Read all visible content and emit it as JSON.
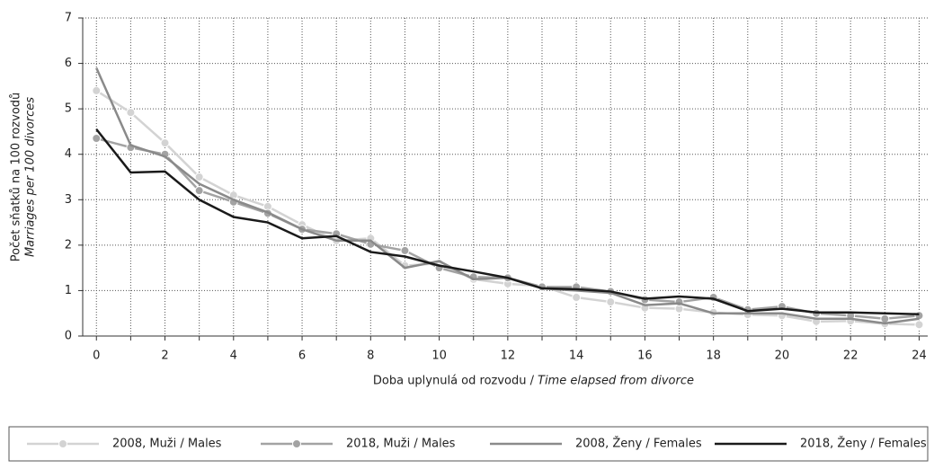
{
  "chart_data": {
    "type": "line",
    "y_label": "Počet sňatků na 100 rozvodů",
    "y_label_en": "Marriages per 100 divorces",
    "x_label": "Doba uplynulá od rozvodu /",
    "x_label_en": "Time elapsed from divorce",
    "x": [
      0,
      1,
      2,
      3,
      4,
      5,
      6,
      7,
      8,
      9,
      10,
      11,
      12,
      13,
      14,
      15,
      16,
      17,
      18,
      19,
      20,
      21,
      22,
      23,
      24
    ],
    "xlim": [
      -0.4,
      24.25
    ],
    "xticks": [
      0,
      2,
      4,
      6,
      8,
      10,
      12,
      14,
      16,
      18,
      20,
      22,
      24
    ],
    "xminorticks": [
      1,
      3,
      5,
      7,
      9,
      11,
      13,
      15,
      17,
      19,
      21,
      23
    ],
    "ylim": [
      0,
      7
    ],
    "yticks": [
      0,
      1,
      2,
      3,
      4,
      5,
      6,
      7
    ],
    "grid": true,
    "legend": "bottom",
    "series": [
      {
        "name": "2008, Muži / Males",
        "color": "#d3d3d3",
        "markers": true,
        "values": [
          5.4,
          4.92,
          4.25,
          3.5,
          3.1,
          2.85,
          2.45,
          2.1,
          2.15,
          1.55,
          1.6,
          1.25,
          1.15,
          1.1,
          0.85,
          0.75,
          0.62,
          0.6,
          0.52,
          0.47,
          0.45,
          0.32,
          0.33,
          0.27,
          0.25
        ]
      },
      {
        "name": "2018, Muži / Males",
        "color": "#a3a3a3",
        "markers": true,
        "values": [
          4.35,
          4.15,
          4.0,
          3.2,
          2.95,
          2.7,
          2.35,
          2.25,
          2.02,
          1.88,
          1.5,
          1.3,
          1.28,
          1.08,
          1.08,
          0.98,
          0.8,
          0.75,
          0.85,
          0.58,
          0.65,
          0.5,
          0.45,
          0.38,
          0.45
        ]
      },
      {
        "name": "2008, Ženy / Females",
        "color": "#8a8a8a",
        "markers": false,
        "values": [
          5.9,
          4.2,
          3.95,
          3.35,
          3.0,
          2.72,
          2.35,
          2.1,
          2.1,
          1.5,
          1.65,
          1.25,
          1.28,
          1.05,
          1.0,
          0.95,
          0.68,
          0.72,
          0.5,
          0.5,
          0.5,
          0.38,
          0.38,
          0.28,
          0.38
        ]
      },
      {
        "name": "2018, Ženy / Females",
        "color": "#1a1a1a",
        "markers": false,
        "values": [
          4.55,
          3.6,
          3.62,
          3.0,
          2.62,
          2.5,
          2.15,
          2.2,
          1.85,
          1.75,
          1.55,
          1.42,
          1.28,
          1.05,
          1.03,
          0.98,
          0.82,
          0.87,
          0.82,
          0.55,
          0.6,
          0.52,
          0.52,
          0.5,
          0.48
        ]
      }
    ]
  }
}
